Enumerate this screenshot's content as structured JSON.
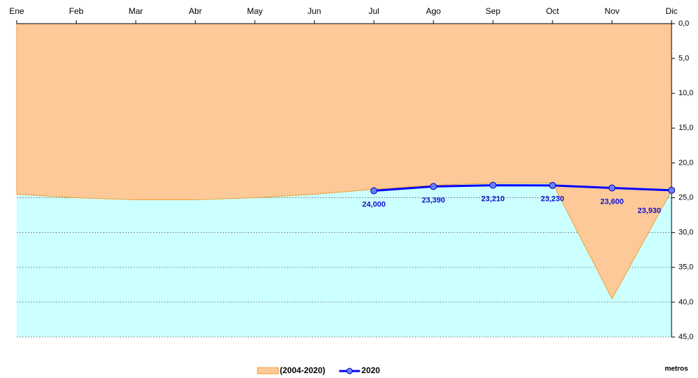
{
  "chart_data": {
    "type": "area",
    "categories": [
      "Ene",
      "Feb",
      "Mar",
      "Abr",
      "May",
      "Jun",
      "Jul",
      "Ago",
      "Sep",
      "Oct",
      "Nov",
      "Dic"
    ],
    "series": [
      {
        "name": "(2004-2020)",
        "type": "area",
        "color": "#fdc998",
        "values": [
          24.5,
          25.0,
          25.3,
          25.3,
          25.0,
          24.5,
          23.8,
          23.2,
          22.9,
          22.9,
          39.5,
          24.0
        ]
      },
      {
        "name": "2020",
        "type": "line",
        "color": "#0000ff",
        "values": [
          null,
          null,
          null,
          null,
          null,
          null,
          24.0,
          23.39,
          23.21,
          23.23,
          23.6,
          23.93
        ],
        "value_labels": [
          null,
          null,
          null,
          null,
          null,
          null,
          "24,000",
          "23,390",
          "23,210",
          "23,230",
          "23,600",
          "23,930"
        ]
      }
    ],
    "y_label": "metros",
    "y_inverted": true,
    "ylim": [
      0,
      45
    ],
    "yticks": [
      {
        "value": 0,
        "label": "0,0"
      },
      {
        "value": 5,
        "label": "5,0"
      },
      {
        "value": 10,
        "label": "10,0"
      },
      {
        "value": 15,
        "label": "15,0"
      },
      {
        "value": 20,
        "label": "20,0"
      },
      {
        "value": 25,
        "label": "25,0"
      },
      {
        "value": 30,
        "label": "30,0"
      },
      {
        "value": 35,
        "label": "35,0"
      },
      {
        "value": 40,
        "label": "40,0"
      },
      {
        "value": 45,
        "label": "45,0"
      }
    ],
    "grid": true,
    "background_color": "#ccffff"
  }
}
